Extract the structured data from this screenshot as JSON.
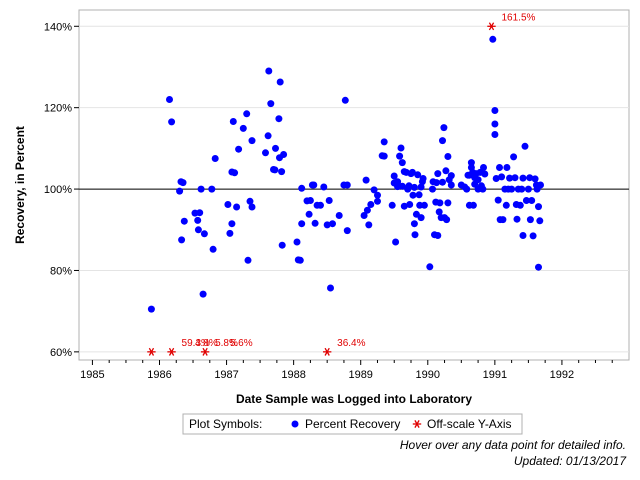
{
  "chart_data": {
    "type": "scatter",
    "xlabel": "Date Sample was Logged into Laboratory",
    "ylabel": "Recovery, in Percent",
    "xlim": [
      1984.8,
      1993.0
    ],
    "ylim": [
      58,
      144
    ],
    "x_ticks": [
      1985,
      1986,
      1987,
      1988,
      1989,
      1990,
      1991,
      1992
    ],
    "x_tick_labels": [
      "1985",
      "1986",
      "1987",
      "1988",
      "1989",
      "1990",
      "1991",
      "1992"
    ],
    "y_ticks": [
      60,
      80,
      100,
      120,
      140
    ],
    "y_tick_labels": [
      "60%",
      "80%",
      "100%",
      "120%",
      "140%"
    ],
    "reference_line": 100,
    "grid": true,
    "legend": {
      "title": "Plot Symbols:",
      "placement": "bottom",
      "entries": [
        {
          "label": "Percent Recovery",
          "symbol": "dot",
          "color": "#0000ff"
        },
        {
          "label": "Off-scale Y-Axis",
          "symbol": "asterisk",
          "color": "#e00000"
        }
      ]
    },
    "series": [
      {
        "name": "Percent Recovery",
        "color": "#0000ff",
        "points": [
          [
            1985.88,
            70.5
          ],
          [
            1986.15,
            122
          ],
          [
            1986.18,
            116.5
          ],
          [
            1986.32,
            101.8
          ],
          [
            1986.3,
            99.5
          ],
          [
            1986.35,
            101.6
          ],
          [
            1986.33,
            87.5
          ],
          [
            1986.37,
            92.1
          ],
          [
            1986.53,
            94.1
          ],
          [
            1986.57,
            92.3
          ],
          [
            1986.6,
            94.2
          ],
          [
            1986.58,
            90
          ],
          [
            1986.62,
            100
          ],
          [
            1986.65,
            74.2
          ],
          [
            1986.67,
            89
          ],
          [
            1986.78,
            100
          ],
          [
            1986.8,
            85.2
          ],
          [
            1986.83,
            107.5
          ],
          [
            1987.02,
            96.2
          ],
          [
            1987.05,
            89.1
          ],
          [
            1987.08,
            91.5
          ],
          [
            1987.08,
            104.2
          ],
          [
            1987.1,
            116.6
          ],
          [
            1987.12,
            104
          ],
          [
            1987.15,
            95.6
          ],
          [
            1987.18,
            109.8
          ],
          [
            1987.25,
            114.9
          ],
          [
            1987.3,
            118.5
          ],
          [
            1987.32,
            82.5
          ],
          [
            1987.35,
            97
          ],
          [
            1987.38,
            95.6
          ],
          [
            1987.38,
            111.9
          ],
          [
            1987.58,
            108.9
          ],
          [
            1987.62,
            113.1
          ],
          [
            1987.63,
            129
          ],
          [
            1987.66,
            121
          ],
          [
            1987.7,
            104.8
          ],
          [
            1987.72,
            104.7
          ],
          [
            1987.73,
            110
          ],
          [
            1987.78,
            117.3
          ],
          [
            1987.8,
            126.3
          ],
          [
            1987.79,
            107.7
          ],
          [
            1987.82,
            104.3
          ],
          [
            1987.83,
            86.2
          ],
          [
            1987.85,
            108.5
          ],
          [
            1988.05,
            87
          ],
          [
            1988.07,
            82.6
          ],
          [
            1988.1,
            82.5
          ],
          [
            1988.12,
            100.2
          ],
          [
            1988.12,
            91.5
          ],
          [
            1988.2,
            97.1
          ],
          [
            1988.23,
            93.8
          ],
          [
            1988.25,
            97.2
          ],
          [
            1988.28,
            101
          ],
          [
            1988.3,
            101
          ],
          [
            1988.32,
            91.6
          ],
          [
            1988.35,
            96
          ],
          [
            1988.4,
            96
          ],
          [
            1988.45,
            100.5
          ],
          [
            1988.5,
            91.2
          ],
          [
            1988.53,
            97.2
          ],
          [
            1988.55,
            75.7
          ],
          [
            1988.58,
            91.5
          ],
          [
            1988.68,
            93.5
          ],
          [
            1988.75,
            101
          ],
          [
            1988.77,
            121.8
          ],
          [
            1988.8,
            101
          ],
          [
            1988.8,
            89.8
          ],
          [
            1989.05,
            93.5
          ],
          [
            1989.08,
            102.2
          ],
          [
            1989.1,
            94.8
          ],
          [
            1989.12,
            91.2
          ],
          [
            1989.15,
            96.2
          ],
          [
            1989.2,
            99.8
          ],
          [
            1989.25,
            98.5
          ],
          [
            1989.25,
            97
          ],
          [
            1989.32,
            108.2
          ],
          [
            1989.35,
            111.6
          ],
          [
            1989.35,
            108.1
          ],
          [
            1989.47,
            96
          ],
          [
            1989.5,
            101.5
          ],
          [
            1989.5,
            103.2
          ],
          [
            1989.52,
            87
          ],
          [
            1989.55,
            101.8
          ],
          [
            1989.55,
            100.6
          ],
          [
            1989.58,
            108.1
          ],
          [
            1989.6,
            110.1
          ],
          [
            1989.62,
            106.5
          ],
          [
            1989.62,
            100.7
          ],
          [
            1989.65,
            104.3
          ],
          [
            1989.65,
            95.8
          ],
          [
            1989.68,
            104.1
          ],
          [
            1989.7,
            100
          ],
          [
            1989.72,
            100.8
          ],
          [
            1989.73,
            96.2
          ],
          [
            1989.75,
            103.8
          ],
          [
            1989.77,
            104.1
          ],
          [
            1989.78,
            98.5
          ],
          [
            1989.8,
            100.4
          ],
          [
            1989.8,
            91.5
          ],
          [
            1989.81,
            88.8
          ],
          [
            1989.83,
            93.8
          ],
          [
            1989.85,
            103.5
          ],
          [
            1989.87,
            98.6
          ],
          [
            1989.88,
            96
          ],
          [
            1989.9,
            100.5
          ],
          [
            1989.9,
            93
          ],
          [
            1989.92,
            101.8
          ],
          [
            1989.93,
            102.6
          ],
          [
            1989.95,
            96
          ],
          [
            1990.03,
            80.9
          ],
          [
            1990.07,
            100
          ],
          [
            1990.08,
            101.8
          ],
          [
            1990.1,
            88.8
          ],
          [
            1990.12,
            96.8
          ],
          [
            1990.13,
            101.6
          ],
          [
            1990.15,
            103.8
          ],
          [
            1990.15,
            88.6
          ],
          [
            1990.17,
            94.4
          ],
          [
            1990.18,
            96.6
          ],
          [
            1990.2,
            93
          ],
          [
            1990.22,
            101.7
          ],
          [
            1990.22,
            111.9
          ],
          [
            1990.24,
            115.1
          ],
          [
            1990.25,
            93
          ],
          [
            1990.27,
            104.5
          ],
          [
            1990.28,
            92.5
          ],
          [
            1990.3,
            96.6
          ],
          [
            1990.3,
            108
          ],
          [
            1990.32,
            102.3
          ],
          [
            1990.35,
            103.3
          ],
          [
            1990.35,
            101
          ],
          [
            1990.5,
            101
          ],
          [
            1990.55,
            100.5
          ],
          [
            1990.58,
            100
          ],
          [
            1990.6,
            103.4
          ],
          [
            1990.62,
            103.4
          ],
          [
            1990.62,
            96
          ],
          [
            1990.65,
            105.3
          ],
          [
            1990.65,
            106.5
          ],
          [
            1990.67,
            104.1
          ],
          [
            1990.68,
            96
          ],
          [
            1990.7,
            102.8
          ],
          [
            1990.7,
            101.2
          ],
          [
            1990.72,
            103.8
          ],
          [
            1990.75,
            100
          ],
          [
            1990.75,
            102.3
          ],
          [
            1990.78,
            104.1
          ],
          [
            1990.8,
            100.8
          ],
          [
            1990.82,
            100
          ],
          [
            1990.83,
            105.3
          ],
          [
            1990.85,
            103.7
          ],
          [
            1990.97,
            136.8
          ],
          [
            1991,
            119.3
          ],
          [
            1991,
            116
          ],
          [
            1991,
            113.4
          ],
          [
            1991.02,
            102.6
          ],
          [
            1991.05,
            97.3
          ],
          [
            1991.07,
            105.3
          ],
          [
            1991.08,
            92.5
          ],
          [
            1991.1,
            103
          ],
          [
            1991.12,
            92.5
          ],
          [
            1991.15,
            100
          ],
          [
            1991.17,
            96
          ],
          [
            1991.18,
            105.3
          ],
          [
            1991.2,
            100
          ],
          [
            1991.22,
            102.7
          ],
          [
            1991.25,
            100
          ],
          [
            1991.28,
            107.9
          ],
          [
            1991.3,
            102.8
          ],
          [
            1991.32,
            96.2
          ],
          [
            1991.33,
            92.6
          ],
          [
            1991.35,
            100
          ],
          [
            1991.38,
            96
          ],
          [
            1991.4,
            100
          ],
          [
            1991.42,
            88.6
          ],
          [
            1991.42,
            102.7
          ],
          [
            1991.45,
            110.5
          ],
          [
            1991.47,
            97.2
          ],
          [
            1991.5,
            100
          ],
          [
            1991.52,
            102.8
          ],
          [
            1991.53,
            92.5
          ],
          [
            1991.55,
            97.2
          ],
          [
            1991.57,
            88.5
          ],
          [
            1991.6,
            102.5
          ],
          [
            1991.62,
            101
          ],
          [
            1991.63,
            100
          ],
          [
            1991.65,
            95.7
          ],
          [
            1991.65,
            80.8
          ],
          [
            1991.67,
            92.2
          ],
          [
            1991.68,
            101
          ]
        ]
      },
      {
        "name": "Off-scale Y-Axis",
        "color": "#e00000",
        "points": [
          {
            "x": 1985.88,
            "y": 60,
            "label": ""
          },
          {
            "x": 1986.18,
            "y": 60,
            "label": "59.3%"
          },
          {
            "x": 1986.68,
            "y": 60,
            "label": "5.8%"
          },
          {
            "x": 1988.5,
            "y": 60,
            "label": "36.4%"
          },
          {
            "x": 1990.95,
            "y": 140,
            "label": "161.5%"
          }
        ],
        "extra_labels": [
          {
            "x": 1986.38,
            "y": 60,
            "label": "4.8%"
          },
          {
            "x": 1986.9,
            "y": 60,
            "label": "5.6%"
          }
        ]
      }
    ]
  },
  "footnote": {
    "line1": "Hover over any data point for detailed info.",
    "line2": "Updated: 01/13/2017"
  }
}
